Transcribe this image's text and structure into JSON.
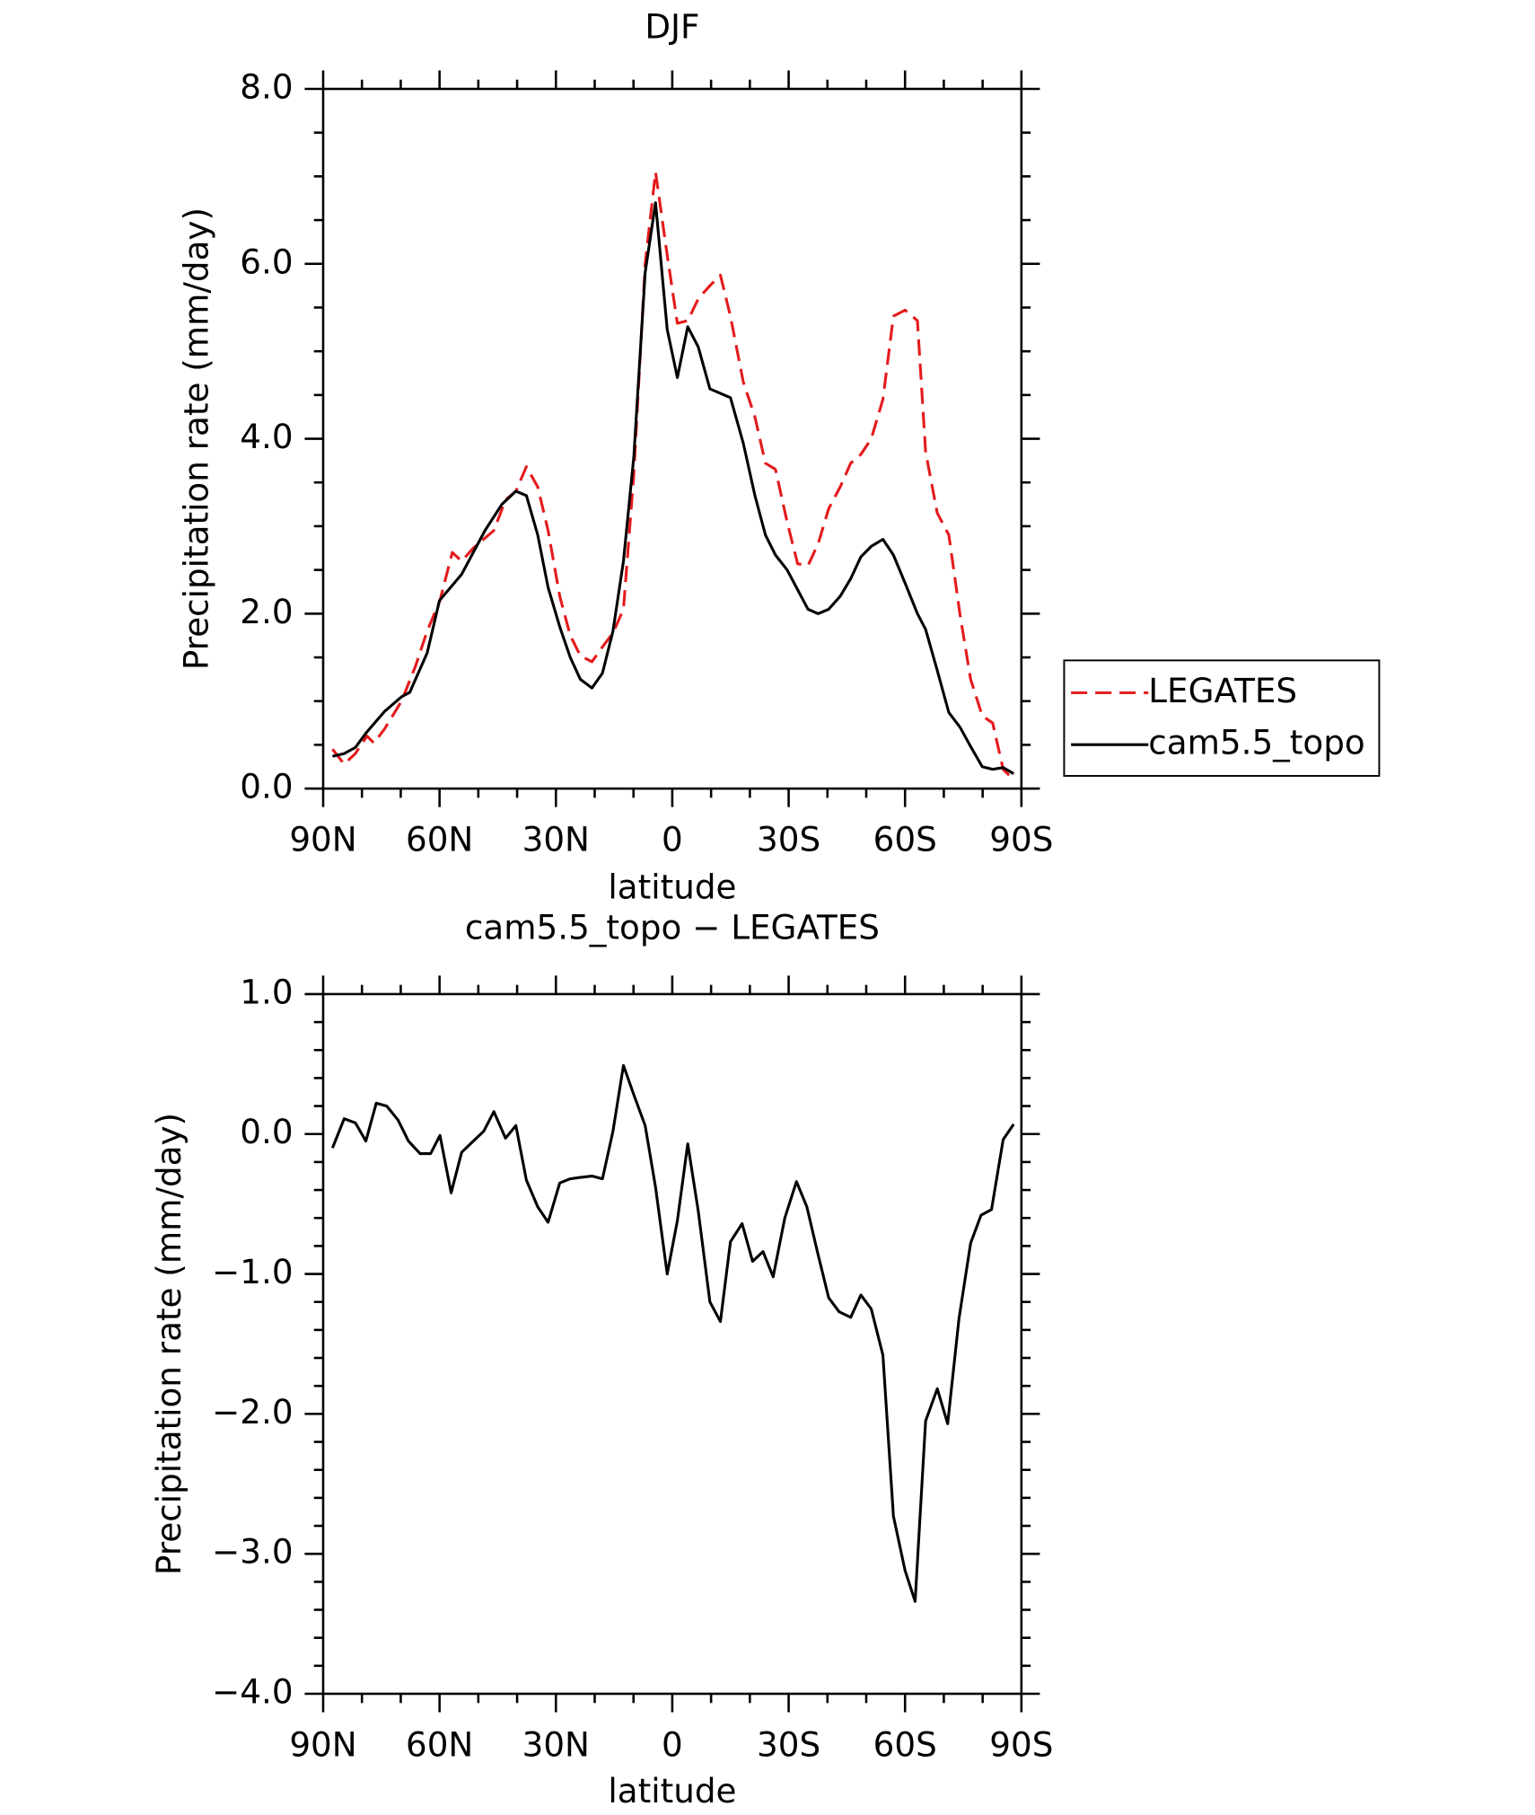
{
  "chart_data": [
    {
      "type": "line",
      "title": "DJF",
      "x_label": "latitude",
      "y_label": "Precipitation rate (mm/day)",
      "xlim": [
        90,
        -90
      ],
      "xticks": [
        {
          "value": 90,
          "label": "90N"
        },
        {
          "value": 60,
          "label": "60N"
        },
        {
          "value": 30,
          "label": "30N"
        },
        0,
        {
          "value": -30,
          "label": "30S"
        },
        {
          "value": -60,
          "label": "60S"
        },
        {
          "value": -90,
          "label": "90S"
        }
      ],
      "ylim": [
        0,
        8
      ],
      "yticks": [
        {
          "value": 0,
          "label": "0.0"
        },
        {
          "value": 2,
          "label": "2.0"
        },
        {
          "value": 4,
          "label": "4.0"
        },
        {
          "value": 6,
          "label": "6.0"
        },
        {
          "value": 8,
          "label": "8.0"
        }
      ],
      "legend": "right",
      "series": [
        {
          "name": "LEGATES",
          "color": "#e41a1c",
          "dash": true,
          "x": [
            87.6,
            84.6,
            81.7,
            78.7,
            76.9,
            74.2,
            69.8,
            66.2,
            63.2,
            59.9,
            56.7,
            54.3,
            51.3,
            46.0,
            43.0,
            40.3,
            37.6,
            34.7,
            32.0,
            29.0,
            26.3,
            23.7,
            20.7,
            18.0,
            15.3,
            12.6,
            9.9,
            7.0,
            4.3,
            1.3,
            -1.3,
            -4.0,
            -6.7,
            -9.7,
            -12.4,
            -15.0,
            -18.3,
            -21.3,
            -24.0,
            -26.6,
            -29.6,
            -32.3,
            -35.0,
            -37.6,
            -40.3,
            -43.3,
            -46.0,
            -48.6,
            -51.3,
            -54.3,
            -57.0,
            -60.0,
            -63.2,
            -65.3,
            -68.3,
            -71.3,
            -74.2,
            -76.9,
            -79.9,
            -82.6,
            -85.3,
            -88.0
          ],
          "values": [
            0.45,
            0.28,
            0.4,
            0.6,
            0.52,
            0.68,
            1.0,
            1.4,
            1.8,
            2.15,
            2.7,
            2.6,
            2.75,
            2.95,
            3.3,
            3.4,
            3.68,
            3.45,
            2.95,
            2.2,
            1.75,
            1.52,
            1.45,
            1.62,
            1.78,
            2.05,
            3.6,
            6.0,
            7.05,
            6.1,
            5.32,
            5.35,
            5.6,
            5.75,
            5.87,
            5.4,
            4.65,
            4.25,
            3.72,
            3.65,
            3.05,
            2.57,
            2.55,
            2.8,
            3.2,
            3.45,
            3.72,
            3.82,
            4.0,
            4.45,
            5.4,
            5.47,
            5.35,
            3.85,
            3.15,
            2.9,
            1.98,
            1.25,
            0.83,
            0.75,
            0.22,
            0.1
          ]
        },
        {
          "name": "cam5.5_topo",
          "color": "#000000",
          "dash": false,
          "x": [
            87.6,
            84.6,
            81.7,
            78.7,
            74.2,
            69.8,
            67.7,
            63.2,
            60.0,
            54.3,
            48.3,
            43.9,
            40.3,
            37.6,
            34.7,
            32.0,
            29.0,
            26.3,
            23.7,
            20.7,
            18.0,
            15.3,
            12.6,
            9.9,
            7.0,
            4.3,
            1.3,
            -1.3,
            -4.0,
            -6.7,
            -9.7,
            -15.0,
            -18.3,
            -21.3,
            -24.0,
            -26.6,
            -29.6,
            -35.0,
            -37.6,
            -40.3,
            -43.3,
            -46.0,
            -48.6,
            -51.3,
            -54.3,
            -57.0,
            -60.0,
            -63.2,
            -65.3,
            -68.3,
            -71.3,
            -74.2,
            -76.9,
            -79.9,
            -82.6,
            -85.3,
            -88.0
          ],
          "values": [
            0.37,
            0.4,
            0.47,
            0.65,
            0.88,
            1.05,
            1.1,
            1.55,
            2.15,
            2.45,
            2.95,
            3.25,
            3.4,
            3.35,
            2.9,
            2.3,
            1.85,
            1.5,
            1.25,
            1.15,
            1.32,
            1.8,
            2.6,
            3.8,
            5.9,
            6.7,
            5.25,
            4.7,
            5.28,
            5.05,
            4.57,
            4.47,
            3.95,
            3.35,
            2.9,
            2.67,
            2.5,
            2.05,
            2.0,
            2.05,
            2.2,
            2.4,
            2.65,
            2.77,
            2.85,
            2.67,
            2.35,
            2.0,
            1.82,
            1.35,
            0.87,
            0.7,
            0.48,
            0.25,
            0.22,
            0.24,
            0.17
          ]
        }
      ]
    },
    {
      "type": "line",
      "title": "cam5.5_topo − LEGATES",
      "x_label": "latitude",
      "y_label": "Precipitation rate (mm/day)",
      "xlim": [
        90,
        -90
      ],
      "xticks": [
        {
          "value": 90,
          "label": "90N"
        },
        {
          "value": 60,
          "label": "60N"
        },
        {
          "value": 30,
          "label": "30N"
        },
        0,
        {
          "value": -30,
          "label": "30S"
        },
        {
          "value": -60,
          "label": "60S"
        },
        {
          "value": -90,
          "label": "90S"
        }
      ],
      "ylim": [
        -4,
        1
      ],
      "yticks": [
        {
          "value": -4,
          "label": "−4.0"
        },
        {
          "value": -3,
          "label": "−3.0"
        },
        {
          "value": -2,
          "label": "−2.0"
        },
        {
          "value": -1,
          "label": "−1.0"
        },
        {
          "value": 0,
          "label": "0.0"
        },
        {
          "value": 1,
          "label": "1.0"
        }
      ],
      "series": [
        {
          "color": "#000000",
          "dash": false,
          "x": [
            87.6,
            84.6,
            81.7,
            79.0,
            76.3,
            73.6,
            70.7,
            68.0,
            65.0,
            62.3,
            59.9,
            57.0,
            54.3,
            51.3,
            48.6,
            46.0,
            43.0,
            40.3,
            37.6,
            34.7,
            32.0,
            29.0,
            26.3,
            23.7,
            20.7,
            18.0,
            15.3,
            12.6,
            9.9,
            7.0,
            4.3,
            1.3,
            -1.3,
            -4.0,
            -6.7,
            -9.7,
            -12.4,
            -15.0,
            -18.0,
            -20.7,
            -23.4,
            -26.0,
            -29.0,
            -32.0,
            -34.7,
            -37.3,
            -40.3,
            -43.0,
            -46.0,
            -48.6,
            -51.3,
            -54.3,
            -57.0,
            -60.0,
            -62.6,
            -65.3,
            -68.3,
            -71.0,
            -73.9,
            -76.9,
            -79.6,
            -82.3,
            -85.3,
            -88.0
          ],
          "values": [
            -0.1,
            0.11,
            0.08,
            -0.05,
            0.22,
            0.2,
            0.1,
            -0.05,
            -0.14,
            -0.14,
            -0.01,
            -0.42,
            -0.13,
            -0.05,
            0.02,
            0.16,
            -0.03,
            0.06,
            -0.33,
            -0.52,
            -0.63,
            -0.35,
            -0.32,
            -0.31,
            -0.3,
            -0.32,
            0.02,
            0.49,
            0.28,
            0.06,
            -0.38,
            -1.0,
            -0.62,
            -0.07,
            -0.55,
            -1.2,
            -1.34,
            -0.77,
            -0.64,
            -0.91,
            -0.84,
            -1.02,
            -0.6,
            -0.34,
            -0.52,
            -0.83,
            -1.17,
            -1.27,
            -1.31,
            -1.15,
            -1.25,
            -1.58,
            -2.73,
            -3.12,
            -3.34,
            -2.05,
            -1.82,
            -2.07,
            -1.32,
            -0.78,
            -0.58,
            -0.54,
            -0.04,
            0.07
          ]
        }
      ]
    }
  ]
}
